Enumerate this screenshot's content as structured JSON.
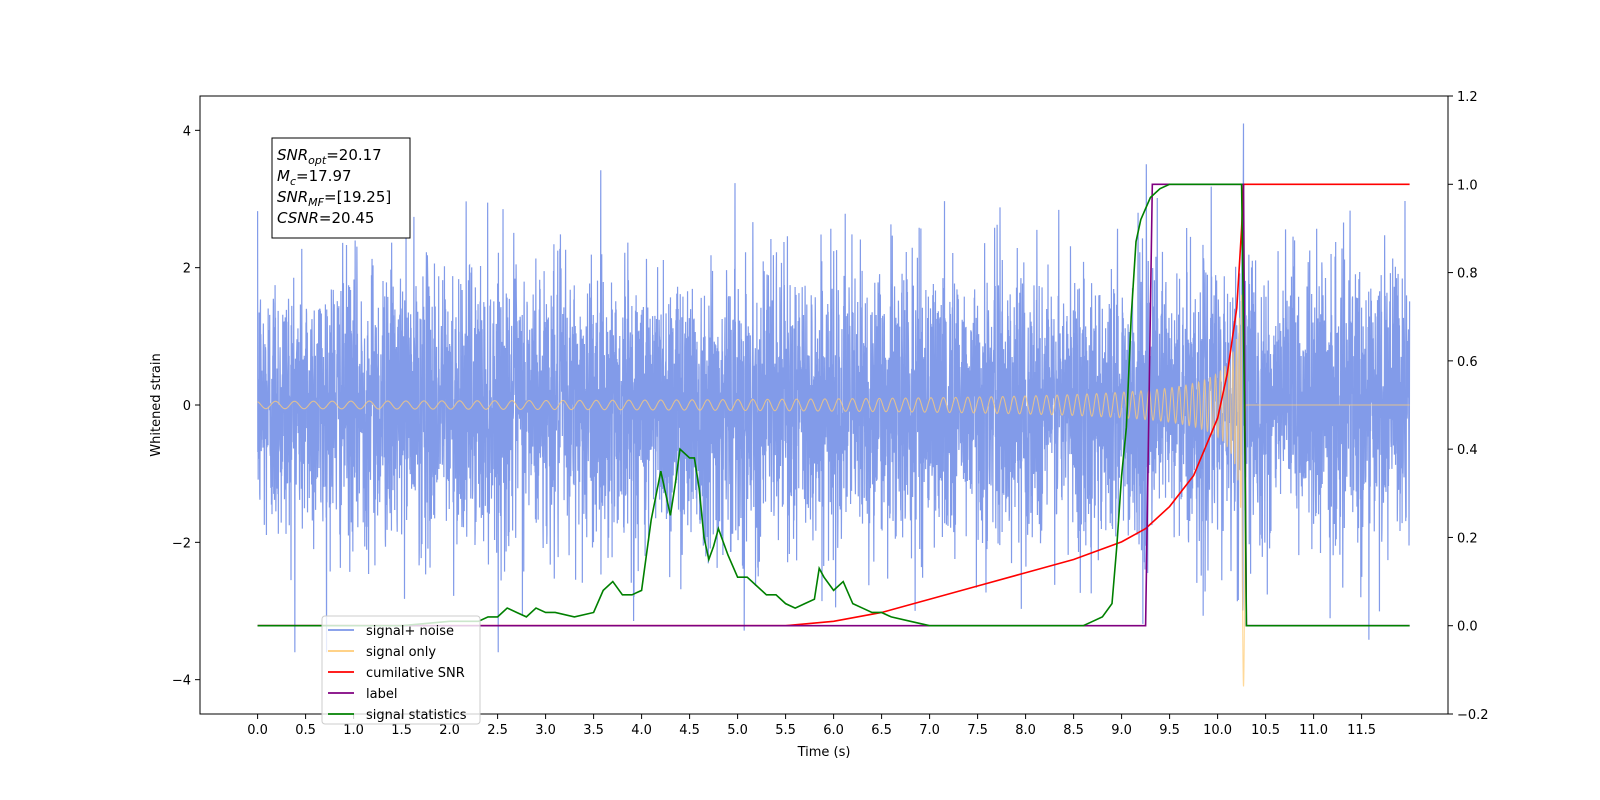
{
  "chart_data": {
    "type": "line",
    "xlabel": "Time (s)",
    "ylabel": "Whitened strain",
    "xlim": [
      -0.6,
      12.4
    ],
    "ylim": [
      -4.5,
      4.5
    ],
    "y2lim": [
      -0.2,
      1.2
    ],
    "xticks": [
      "0.0",
      "0.5",
      "1.0",
      "1.5",
      "2.0",
      "2.5",
      "3.0",
      "3.5",
      "4.0",
      "4.5",
      "5.0",
      "5.5",
      "6.0",
      "6.5",
      "7.0",
      "7.5",
      "8.0",
      "8.5",
      "9.0",
      "9.5",
      "10.0",
      "10.5",
      "11.0",
      "11.5"
    ],
    "yticks": [
      "−4",
      "−2",
      "0",
      "2",
      "4"
    ],
    "y2ticks": [
      "−0.2",
      "0.0",
      "0.2",
      "0.4",
      "0.6",
      "0.8",
      "1.0",
      "1.2"
    ],
    "annotation": {
      "lines": [
        {
          "symbol": "SNR",
          "sub": "opt",
          "value": "=20.17"
        },
        {
          "symbol": "M",
          "sub": "c",
          "value": "=17.97"
        },
        {
          "symbol": "SNR",
          "sub": "MF",
          "value": "=[19.25]"
        },
        {
          "symbol": "CSNR",
          "sub": "",
          "value": "=20.45"
        }
      ]
    },
    "legend": {
      "placement": "lower-left",
      "entries": [
        {
          "label": "signal+ noise",
          "color": "#7b96e8"
        },
        {
          "label": "signal only",
          "color": "#ffcc77"
        },
        {
          "label": "cumilative SNR",
          "color": "#ff0000"
        },
        {
          "label": "label",
          "color": "#800080"
        },
        {
          "label": "signal statistics",
          "color": "#008000"
        }
      ]
    },
    "series": [
      {
        "name": "signal+ noise",
        "axis": "left",
        "color": "#7b96e8",
        "t_range": [
          0.0,
          12.0
        ],
        "std": 1.0,
        "upper_envelope_max": 4.1,
        "lower_envelope_min": -3.6
      },
      {
        "name": "signal only",
        "axis": "left",
        "color": "#ffcc77",
        "merger_time": 10.27,
        "peak_amplitude": 3.9,
        "min_value": -4.1
      },
      {
        "name": "cumilative SNR",
        "axis": "right",
        "color": "#ff0000",
        "x": [
          0.0,
          5.5,
          6.0,
          6.5,
          7.0,
          7.5,
          8.0,
          8.5,
          9.0,
          9.25,
          9.5,
          9.75,
          10.0,
          10.1,
          10.2,
          10.25,
          10.27,
          10.3,
          12.0
        ],
        "y": [
          0.0,
          0.0,
          0.01,
          0.03,
          0.06,
          0.09,
          0.12,
          0.15,
          0.19,
          0.22,
          0.27,
          0.34,
          0.47,
          0.57,
          0.72,
          0.9,
          1.0,
          1.0,
          1.0
        ]
      },
      {
        "name": "label",
        "axis": "right",
        "color": "#800080",
        "x": [
          0.0,
          9.25,
          9.32,
          10.27,
          10.3,
          12.0
        ],
        "y": [
          0.0,
          0.0,
          1.0,
          1.0,
          0.0,
          0.0
        ]
      },
      {
        "name": "signal statistics",
        "axis": "right",
        "color": "#008000",
        "x": [
          0.0,
          1.5,
          2.0,
          2.3,
          2.4,
          2.5,
          2.6,
          2.7,
          2.8,
          2.9,
          3.0,
          3.1,
          3.3,
          3.5,
          3.6,
          3.7,
          3.8,
          3.9,
          4.0,
          4.1,
          4.2,
          4.3,
          4.35,
          4.4,
          4.5,
          4.55,
          4.6,
          4.65,
          4.7,
          4.75,
          4.8,
          4.9,
          5.0,
          5.1,
          5.2,
          5.3,
          5.4,
          5.5,
          5.6,
          5.7,
          5.8,
          5.85,
          5.9,
          6.0,
          6.1,
          6.2,
          6.3,
          6.4,
          6.5,
          6.6,
          6.8,
          7.0,
          7.5,
          8.0,
          8.6,
          8.7,
          8.8,
          8.9,
          8.95,
          9.0,
          9.05,
          9.1,
          9.15,
          9.2,
          9.3,
          9.4,
          9.5,
          10.0,
          10.25,
          10.28,
          10.3,
          12.0
        ],
        "y": [
          0.0,
          0.0,
          0.01,
          0.01,
          0.02,
          0.02,
          0.04,
          0.03,
          0.02,
          0.04,
          0.03,
          0.03,
          0.02,
          0.03,
          0.08,
          0.1,
          0.07,
          0.07,
          0.08,
          0.24,
          0.35,
          0.25,
          0.32,
          0.4,
          0.38,
          0.38,
          0.31,
          0.2,
          0.15,
          0.18,
          0.22,
          0.16,
          0.11,
          0.11,
          0.09,
          0.07,
          0.07,
          0.05,
          0.04,
          0.05,
          0.06,
          0.13,
          0.11,
          0.08,
          0.1,
          0.05,
          0.04,
          0.03,
          0.03,
          0.02,
          0.01,
          0.0,
          0.0,
          0.0,
          0.0,
          0.01,
          0.02,
          0.05,
          0.18,
          0.34,
          0.45,
          0.7,
          0.87,
          0.92,
          0.97,
          0.99,
          1.0,
          1.0,
          1.0,
          0.5,
          0.0,
          0.0
        ]
      }
    ]
  }
}
